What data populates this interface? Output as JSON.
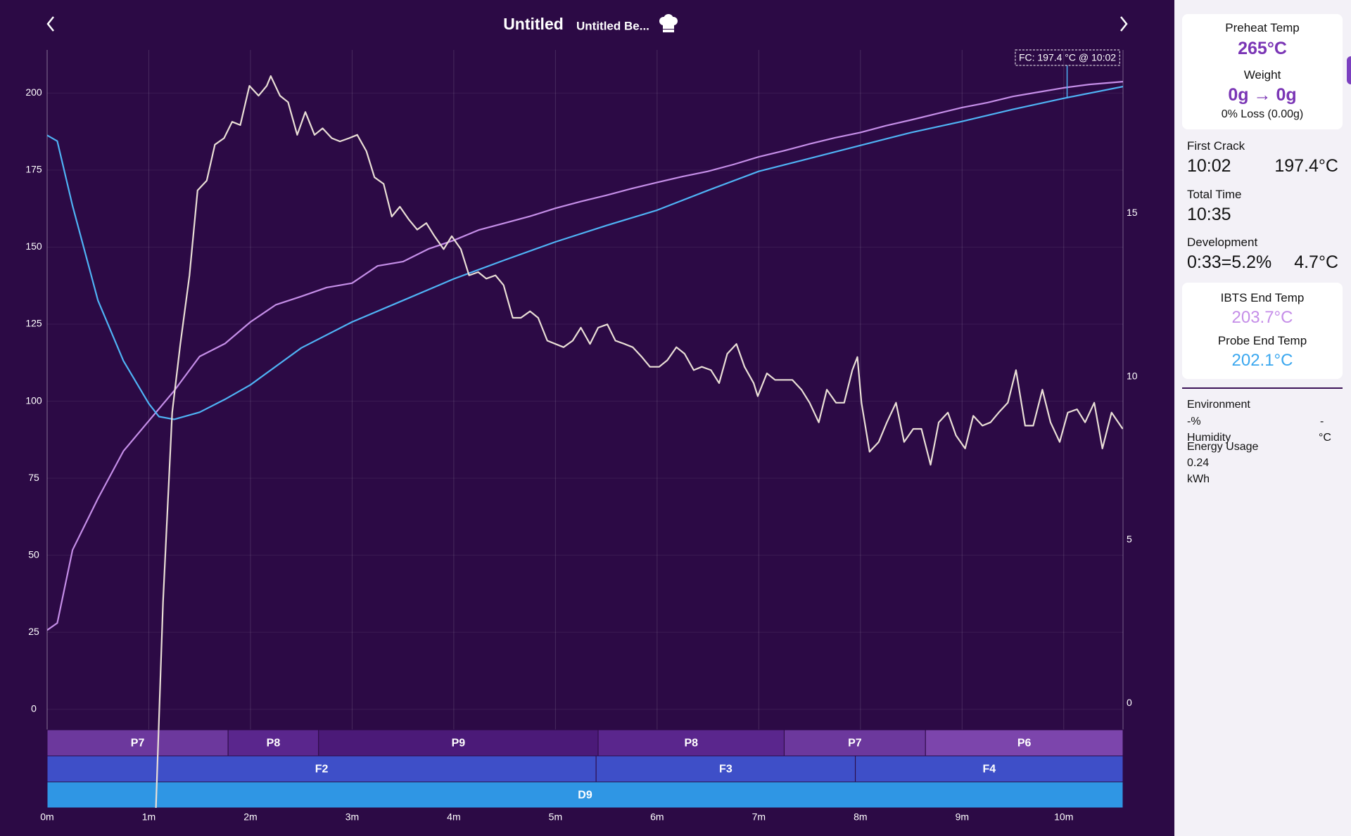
{
  "header": {
    "title": "Untitled",
    "subtitle": "Untitled Be..."
  },
  "chart_data": {
    "type": "line",
    "xlim": [
      0,
      10.583
    ],
    "xticks": [
      {
        "value": 0,
        "label": "0m"
      },
      {
        "value": 1,
        "label": "1m"
      },
      {
        "value": 2,
        "label": "2m"
      },
      {
        "value": 3,
        "label": "3m"
      },
      {
        "value": 4,
        "label": "4m"
      },
      {
        "value": 5,
        "label": "5m"
      },
      {
        "value": 6,
        "label": "6m"
      },
      {
        "value": 7,
        "label": "7m"
      },
      {
        "value": 8,
        "label": "8m"
      },
      {
        "value": 9,
        "label": "9m"
      },
      {
        "value": 10,
        "label": "10m"
      }
    ],
    "ylim": [
      -32,
      214
    ],
    "yticks": [
      0,
      25,
      50,
      75,
      100,
      125,
      150,
      175,
      200
    ],
    "y2lim": [
      -3.2,
      20
    ],
    "y2ticks": [
      0,
      5,
      10,
      15
    ],
    "grid": true,
    "series": [
      {
        "color": "#c58ee8",
        "x": [
          0,
          0.1,
          0.25,
          0.5,
          0.75,
          1.0,
          1.25,
          1.5,
          1.75,
          2.0,
          2.25,
          2.5,
          2.75,
          3.0,
          3.25,
          3.5,
          3.75,
          4.0,
          4.25,
          4.5,
          4.75,
          5.0,
          5.25,
          5.5,
          5.75,
          6.0,
          6.25,
          6.5,
          6.75,
          7.0,
          7.25,
          7.5,
          7.75,
          8.0,
          8.25,
          8.5,
          8.75,
          9.0,
          9.25,
          9.5,
          9.75,
          10.0,
          10.25,
          10.583
        ],
        "values": [
          25.7,
          28,
          51.7,
          68.4,
          83.8,
          93.6,
          103.4,
          114.5,
          118.7,
          125.7,
          131.3,
          134,
          136.9,
          138.3,
          143.9,
          145.3,
          149.4,
          152.2,
          155.6,
          157.8,
          160,
          162.6,
          164.8,
          166.8,
          169,
          171,
          172.9,
          174.6,
          176.8,
          179.3,
          181.3,
          183.5,
          185.5,
          187.2,
          189.4,
          191.3,
          193.3,
          195.3,
          196.9,
          198.9,
          200.3,
          201.7,
          202.8,
          203.7
        ]
      },
      {
        "color": "#4fb3f5",
        "x": [
          0,
          0.1,
          0.25,
          0.5,
          0.75,
          1.0,
          1.1,
          1.25,
          1.5,
          1.75,
          2.0,
          2.5,
          3.0,
          3.5,
          4.0,
          4.5,
          5.0,
          5.5,
          6.0,
          6.5,
          7.0,
          7.5,
          8.0,
          8.5,
          9.0,
          9.5,
          10.0,
          10.583
        ],
        "values": [
          186.3,
          184.4,
          163.4,
          132.7,
          113.1,
          99.2,
          95.0,
          94.1,
          96.4,
          100.6,
          105.3,
          117.3,
          125.7,
          132.7,
          139.7,
          145.8,
          151.7,
          157,
          162,
          168.4,
          174.6,
          178.8,
          183,
          187.2,
          190.8,
          194.7,
          198.3,
          202.1
        ]
      },
      {
        "color": "#eadfd6",
        "axis": "y2",
        "x": [
          1.07,
          1.14,
          1.23,
          1.31,
          1.4,
          1.48,
          1.57,
          1.65,
          1.74,
          1.82,
          1.9,
          1.99,
          2.08,
          2.16,
          2.2,
          2.29,
          2.37,
          2.46,
          2.54,
          2.63,
          2.71,
          2.8,
          2.88,
          2.97,
          3.05,
          3.14,
          3.22,
          3.31,
          3.39,
          3.47,
          3.56,
          3.64,
          3.73,
          3.81,
          3.9,
          3.98,
          4.07,
          4.15,
          4.24,
          4.32,
          4.41,
          4.49,
          4.58,
          4.66,
          4.75,
          4.83,
          4.92,
          5.0,
          5.08,
          5.17,
          5.25,
          5.34,
          5.42,
          5.51,
          5.59,
          5.68,
          5.76,
          5.85,
          5.93,
          6.02,
          6.1,
          6.19,
          6.27,
          6.36,
          6.44,
          6.53,
          6.61,
          6.69,
          6.78,
          6.86,
          6.95,
          6.99,
          7.08,
          7.16,
          7.25,
          7.33,
          7.42,
          7.5,
          7.59,
          7.67,
          7.76,
          7.84,
          7.92,
          7.97,
          8.01,
          8.09,
          8.18,
          8.26,
          8.35,
          8.43,
          8.52,
          8.6,
          8.69,
          8.77,
          8.86,
          8.94,
          9.03,
          9.11,
          9.2,
          9.28,
          9.36,
          9.45,
          9.53,
          9.62,
          9.7,
          9.79,
          9.87,
          9.96,
          10.04,
          10.13,
          10.21,
          10.3,
          10.38,
          10.47,
          10.58
        ],
        "values": [
          -3.2,
          3.1,
          8.9,
          11.0,
          13.1,
          15.7,
          16.0,
          17.1,
          17.3,
          17.8,
          17.7,
          18.9,
          18.6,
          18.9,
          19.2,
          18.6,
          18.4,
          17.4,
          18.1,
          17.4,
          17.6,
          17.3,
          17.2,
          17.3,
          17.4,
          16.9,
          16.1,
          15.9,
          14.9,
          15.2,
          14.8,
          14.5,
          14.7,
          14.3,
          13.9,
          14.3,
          13.9,
          13.1,
          13.2,
          13.0,
          13.1,
          12.8,
          11.8,
          11.8,
          12.0,
          11.8,
          11.1,
          11.0,
          10.9,
          11.1,
          11.5,
          11.0,
          11.5,
          11.6,
          11.1,
          11.0,
          10.9,
          10.6,
          10.3,
          10.3,
          10.5,
          10.9,
          10.7,
          10.2,
          10.3,
          10.2,
          9.8,
          10.7,
          11.0,
          10.3,
          9.8,
          9.4,
          10.1,
          9.9,
          9.9,
          9.9,
          9.6,
          9.2,
          8.6,
          9.6,
          9.2,
          9.2,
          10.2,
          10.6,
          9.2,
          7.7,
          8.0,
          8.6,
          9.2,
          8.0,
          8.4,
          8.4,
          7.3,
          8.6,
          8.9,
          8.2,
          7.8,
          8.8,
          8.5,
          8.6,
          8.9,
          9.2,
          10.2,
          8.5,
          8.5,
          9.6,
          8.6,
          8.0,
          8.9,
          9.0,
          8.6,
          9.2,
          7.8,
          8.9,
          8.4
        ]
      }
    ],
    "first_crack": {
      "label": "FC: 197.4 °C @ 10:02",
      "x": 10.033
    },
    "bands": [
      {
        "segments": [
          {
            "label": "P7",
            "start": 0,
            "end": 1.78,
            "color": "#6c389d"
          },
          {
            "label": "P8",
            "start": 1.78,
            "end": 2.67,
            "color": "#5a268d"
          },
          {
            "label": "P9",
            "start": 2.67,
            "end": 5.42,
            "color": "#4b1a78"
          },
          {
            "label": "P8",
            "start": 5.42,
            "end": 7.25,
            "color": "#5a268d"
          },
          {
            "label": "P7",
            "start": 7.25,
            "end": 8.64,
            "color": "#6c389d"
          },
          {
            "label": "P6",
            "start": 8.64,
            "end": 10.583,
            "color": "#7c45ac"
          }
        ]
      },
      {
        "segments": [
          {
            "label": "F2",
            "start": 0,
            "end": 5.4,
            "color": "#3e4fc8"
          },
          {
            "label": "F3",
            "start": 5.4,
            "end": 7.95,
            "color": "#3e4fc8"
          },
          {
            "label": "F4",
            "start": 7.95,
            "end": 10.583,
            "color": "#3e4fc8"
          }
        ]
      },
      {
        "segments": [
          {
            "label": "D9",
            "start": 0,
            "end": 10.583,
            "color": "#2f96e4"
          }
        ]
      }
    ]
  },
  "panel": {
    "preheat": {
      "label": "Preheat Temp",
      "value": "265°C"
    },
    "weight": {
      "label": "Weight",
      "value": "0g → 0g",
      "loss": "0% Loss (0.00g)"
    },
    "first_crack": {
      "label": "First Crack",
      "time": "10:02",
      "temp": "197.4°C"
    },
    "total_time": {
      "label": "Total Time",
      "value": "10:35"
    },
    "development": {
      "label": "Development",
      "value": "0:33=5.2%",
      "temp": "4.7°C"
    },
    "ibts_end": {
      "label": "IBTS End Temp",
      "value": "203.7°C"
    },
    "probe_end": {
      "label": "Probe End Temp",
      "value": "202.1°C"
    },
    "environment": {
      "label": "Environment",
      "humidity_value": "-%",
      "temp_value": "-",
      "humidity_label": "Humidity",
      "temp_unit": "°C",
      "energy_label": "Energy Usage",
      "energy_value": "0.24",
      "energy_unit": "kWh"
    }
  }
}
